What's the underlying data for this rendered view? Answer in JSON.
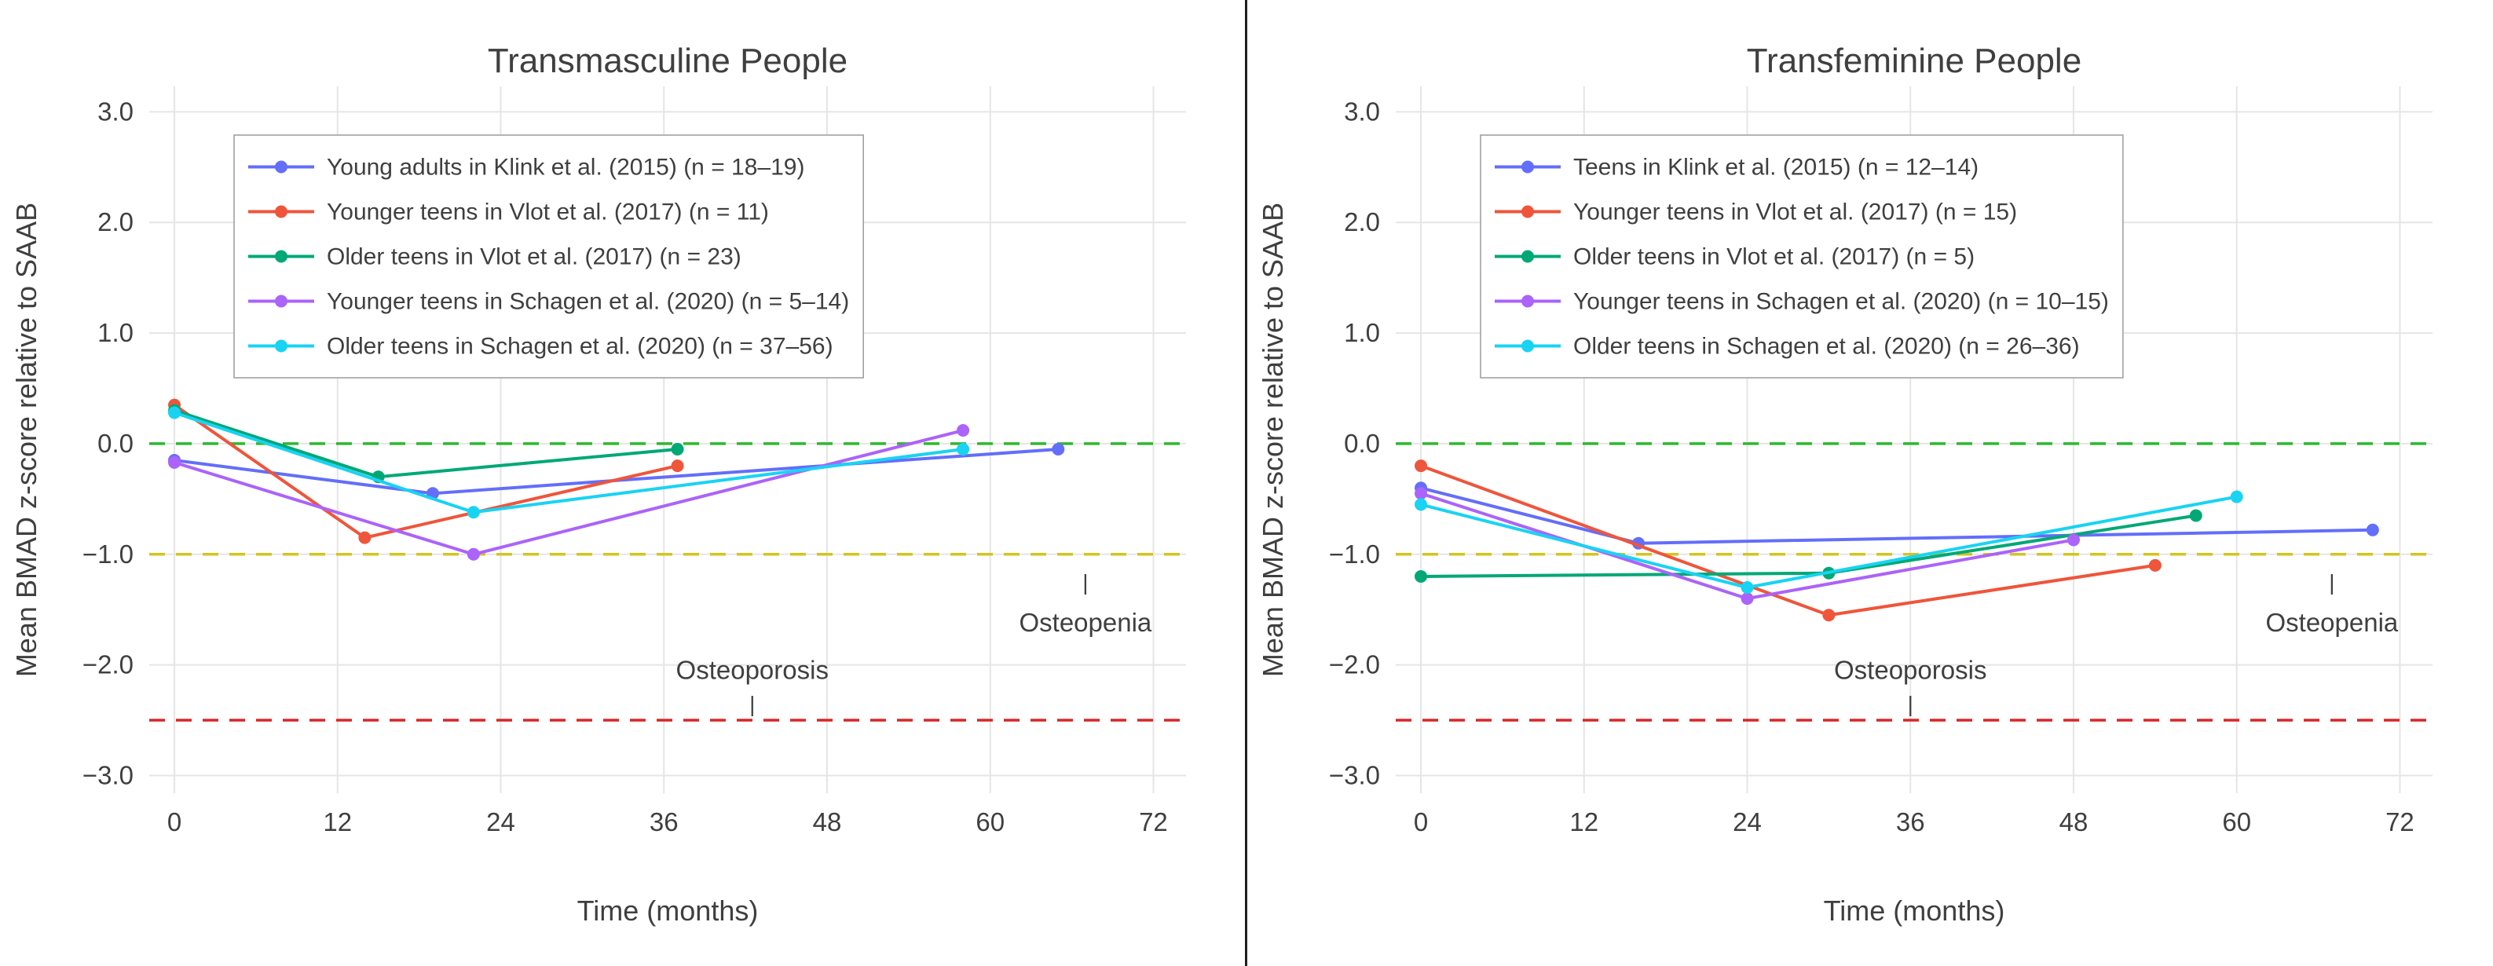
{
  "page": {
    "background": "#ffffff",
    "divider_color": "#1f1f1f"
  },
  "chart_data": [
    {
      "type": "line",
      "title": "Transmasculine People",
      "xlabel": "Time (months)",
      "ylabel": "Mean BMAD z-score relative to SAAB",
      "xlim": [
        -1.85,
        74.4
      ],
      "ylim": [
        -3.16,
        3.23
      ],
      "x_ticks": [
        0,
        12,
        24,
        36,
        48,
        60,
        72
      ],
      "y_ticks": [
        3.0,
        2.0,
        1.0,
        0.0,
        -1.0,
        -2.0,
        -3.0
      ],
      "grid": true,
      "legend_position": "top-left",
      "reference_lines": [
        {
          "name": "zero-reference-line",
          "y": 0,
          "color": "#2eb82e",
          "style": "dashed"
        },
        {
          "name": "osteopenia-threshold-line",
          "y": -1.0,
          "color": "#d4c51f",
          "style": "dashed"
        },
        {
          "name": "osteoporosis-threshold-line",
          "y": -2.5,
          "color": "#d62728",
          "style": "dashed"
        }
      ],
      "annotations": [
        {
          "label": "Osteoporosis",
          "x": 42.5,
          "text_y": -2.05,
          "tick_y": -2.35
        },
        {
          "label": "Osteopenia",
          "x": 67,
          "text_y": -1.62,
          "tick_y": -1.25
        }
      ],
      "series": [
        {
          "name": "Young adults in Klink et al. (2015) (n = 18–19)",
          "color": "#636efa",
          "points": [
            [
              0,
              -0.15
            ],
            [
              19,
              -0.45
            ],
            [
              65,
              -0.05
            ]
          ]
        },
        {
          "name": "Younger teens in Vlot et al. (2017) (n = 11)",
          "color": "#ef553b",
          "points": [
            [
              0,
              0.35
            ],
            [
              14,
              -0.85
            ],
            [
              37,
              -0.2
            ]
          ]
        },
        {
          "name": "Older teens in Vlot et al. (2017) (n = 23)",
          "color": "#00a876",
          "points": [
            [
              0,
              0.3
            ],
            [
              15,
              -0.3
            ],
            [
              37,
              -0.05
            ]
          ]
        },
        {
          "name": "Younger teens in Schagen et al. (2020) (n = 5–14)",
          "color": "#ab63fa",
          "points": [
            [
              0,
              -0.17
            ],
            [
              22,
              -1.0
            ],
            [
              58,
              0.12
            ]
          ]
        },
        {
          "name": "Older teens in Schagen et al. (2020) (n = 37–56)",
          "color": "#19d3f3",
          "points": [
            [
              0,
              0.28
            ],
            [
              22,
              -0.62
            ],
            [
              58,
              -0.05
            ]
          ]
        }
      ]
    },
    {
      "type": "line",
      "title": "Transfeminine People",
      "xlabel": "Time (months)",
      "ylabel": "Mean BMAD z-score relative to SAAB",
      "xlim": [
        -1.85,
        74.4
      ],
      "ylim": [
        -3.16,
        3.23
      ],
      "x_ticks": [
        0,
        12,
        24,
        36,
        48,
        60,
        72
      ],
      "y_ticks": [
        3.0,
        2.0,
        1.0,
        0.0,
        -1.0,
        -2.0,
        -3.0
      ],
      "grid": true,
      "legend_position": "top-left",
      "reference_lines": [
        {
          "name": "zero-reference-line",
          "y": 0,
          "color": "#2eb82e",
          "style": "dashed"
        },
        {
          "name": "osteopenia-threshold-line",
          "y": -1.0,
          "color": "#d4c51f",
          "style": "dashed"
        },
        {
          "name": "osteoporosis-threshold-line",
          "y": -2.5,
          "color": "#d62728",
          "style": "dashed"
        }
      ],
      "annotations": [
        {
          "label": "Osteoporosis",
          "x": 36,
          "text_y": -2.05,
          "tick_y": -2.35
        },
        {
          "label": "Osteopenia",
          "x": 67,
          "text_y": -1.62,
          "tick_y": -1.25
        }
      ],
      "series": [
        {
          "name": "Teens in Klink et al. (2015) (n = 12–14)",
          "color": "#636efa",
          "points": [
            [
              0,
              -0.4
            ],
            [
              16,
              -0.9
            ],
            [
              70,
              -0.78
            ]
          ]
        },
        {
          "name": "Younger teens in Vlot et al. (2017) (n = 15)",
          "color": "#ef553b",
          "points": [
            [
              0,
              -0.2
            ],
            [
              30,
              -1.55
            ],
            [
              54,
              -1.1
            ]
          ]
        },
        {
          "name": "Older teens in Vlot et al. (2017) (n = 5)",
          "color": "#00a876",
          "points": [
            [
              0,
              -1.2
            ],
            [
              30,
              -1.17
            ],
            [
              57,
              -0.65
            ]
          ]
        },
        {
          "name": "Younger teens in Schagen et al. (2020) (n = 10–15)",
          "color": "#ab63fa",
          "points": [
            [
              0,
              -0.45
            ],
            [
              24,
              -1.4
            ],
            [
              48,
              -0.87
            ]
          ]
        },
        {
          "name": "Older teens in Schagen et al. (2020) (n = 26–36)",
          "color": "#19d3f3",
          "points": [
            [
              0,
              -0.55
            ],
            [
              24,
              -1.3
            ],
            [
              60,
              -0.48
            ]
          ]
        }
      ]
    }
  ]
}
